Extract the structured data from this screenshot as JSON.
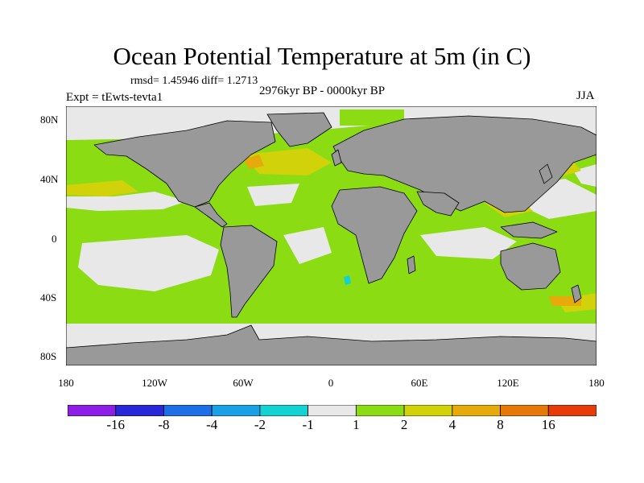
{
  "title": "Ocean Potential Temperature at 5m (in C)",
  "stats": "rmsd= 1.45946 diff= 1.2713",
  "experiment": "Expt = tEwts-tevta1",
  "period": "2976kyr BP - 0000kyr BP",
  "season": "JJA",
  "lat_labels": [
    "80N",
    "40N",
    "0",
    "40S",
    "80S"
  ],
  "lon_labels": [
    "180",
    "120W",
    "60W",
    "0",
    "60E",
    "120E",
    "180"
  ],
  "colorbar": {
    "colors": [
      "#8c1ee6",
      "#2828d8",
      "#1e6ee6",
      "#19a0e6",
      "#14d2d2",
      "#e8e8e8",
      "#8cdc14",
      "#d2d20a",
      "#e6aa0a",
      "#e6780a",
      "#e63c0a"
    ],
    "labels": [
      "-16",
      "-8",
      "-4",
      "-2",
      "-1",
      "1",
      "2",
      "4",
      "8",
      "16"
    ]
  },
  "colors": {
    "land": "#999999",
    "ice_free_white": "#e8e8e8",
    "green": "#8cdc14",
    "yellow": "#d2d20a",
    "orange": "#e6aa0a",
    "cyan": "#14d2d2"
  }
}
